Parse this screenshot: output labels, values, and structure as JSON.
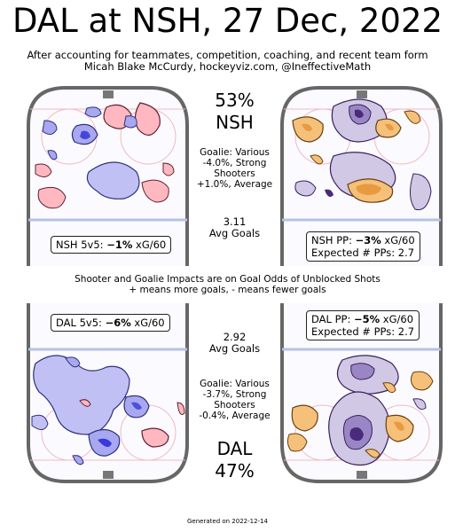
{
  "title": "DAL at NSH, 27 Dec, 2022",
  "subtitle_1": "After accounting for teammates, competition, coaching, and recent team form",
  "subtitle_2": "Micah Blake McCurdy, hockeyviz.com, @IneffectiveMath",
  "nsh": {
    "pct": "53%",
    "team": "NSH",
    "goalie_1": "Goalie: Various",
    "goalie_2": "-4.0%, Strong",
    "shooters_1": "Shooters",
    "shooters_2": "+1.0%, Average",
    "avg_goals_value": "3.11",
    "avg_goals_label": "Avg Goals",
    "ev_prefix": "NSH 5v5: ",
    "ev_value": "−1%",
    "ev_suffix": " xG/60",
    "pp_prefix": "NSH PP: ",
    "pp_value": "−3%",
    "pp_suffix": " xG/60",
    "pp_expected": "Expected # PPs: 2.7"
  },
  "dal": {
    "pct": "47%",
    "team": "DAL",
    "goalie_1": "Goalie: Various",
    "goalie_2": "-3.7%, Strong",
    "shooters_1": "Shooters",
    "shooters_2": "-0.4%, Average",
    "avg_goals_value": "2.92",
    "avg_goals_label": "Avg Goals",
    "ev_prefix": "DAL 5v5: ",
    "ev_value": "−6%",
    "ev_suffix": " xG/60",
    "pp_prefix": "DAL PP: ",
    "pp_value": "−5%",
    "pp_suffix": " xG/60",
    "pp_expected": "Expected # PPs: 2.7"
  },
  "note_1": "Shooter and Goalie Impacts are on Goal Odds of Unblocked Shots",
  "note_2": "+ means more goals, - means fewer goals",
  "footer": "Generated on 2022-12-14",
  "colors": {
    "ev_more": "#ffb0b8",
    "ev_fewer": "#a8a8f0",
    "ev_fewer_dark": "#3a3ad8",
    "pp_more": "#f5c07a",
    "pp_fewer": "#c8c0e0",
    "pp_fewer_dark": "#4a2a7a",
    "rink_line": "#e8a8b0",
    "blue_line": "#a8b8e0",
    "boards": "#666666"
  }
}
